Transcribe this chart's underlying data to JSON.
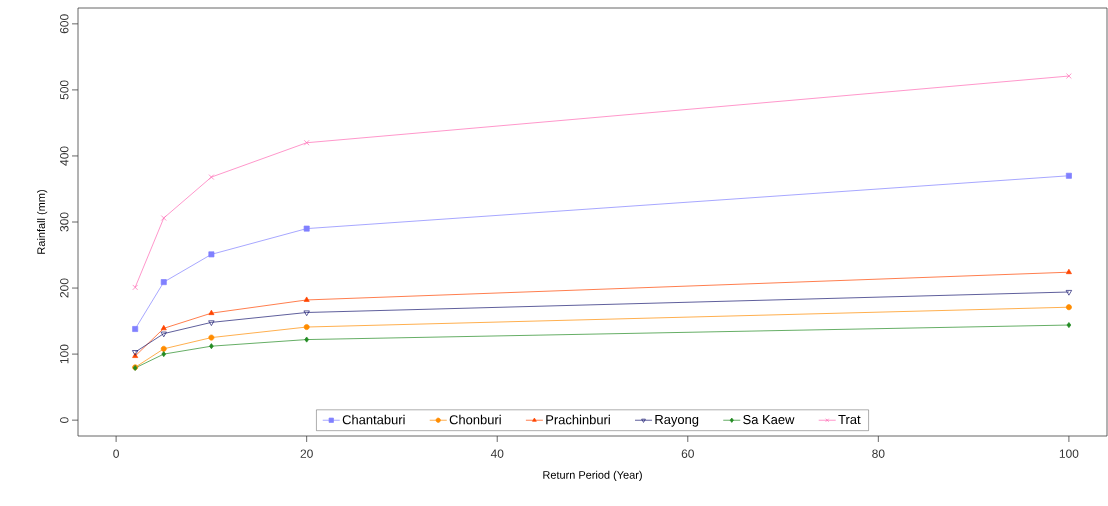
{
  "chart_data": {
    "type": "line",
    "xlabel": "Return Period (Year)",
    "ylabel": "Rainfall (mm)",
    "x": [
      2,
      5,
      10,
      20,
      100
    ],
    "xlim": [
      -4,
      104
    ],
    "ylim": [
      -24,
      624
    ],
    "xticks": [
      0,
      20,
      40,
      60,
      80,
      100
    ],
    "yticks": [
      0,
      100,
      200,
      300,
      400,
      500,
      600
    ],
    "legend": "bottom",
    "grid": false,
    "line_style": "solid",
    "series": [
      {
        "name": "Chantaburi",
        "color": "#8080ff",
        "marker": "square",
        "values": [
          138,
          209,
          251,
          290,
          370
        ]
      },
      {
        "name": "Chonburi",
        "color": "#ff8c00",
        "marker": "circle",
        "values": [
          80,
          108,
          125,
          141,
          171
        ]
      },
      {
        "name": "Prachinburi",
        "color": "#ff4500",
        "marker": "triangle",
        "values": [
          97,
          139,
          162,
          182,
          224
        ]
      },
      {
        "name": "Rayong",
        "color": "#191970",
        "marker": "triangle_down",
        "values": [
          103,
          131,
          148,
          163,
          194
        ]
      },
      {
        "name": "Sa Kaew",
        "color": "#228b22",
        "marker": "diamond",
        "values": [
          79,
          100,
          112,
          122,
          144
        ]
      },
      {
        "name": "Trat",
        "color": "#ff69b4",
        "marker": "cross",
        "values": [
          201,
          306,
          368,
          420,
          521
        ]
      }
    ]
  }
}
